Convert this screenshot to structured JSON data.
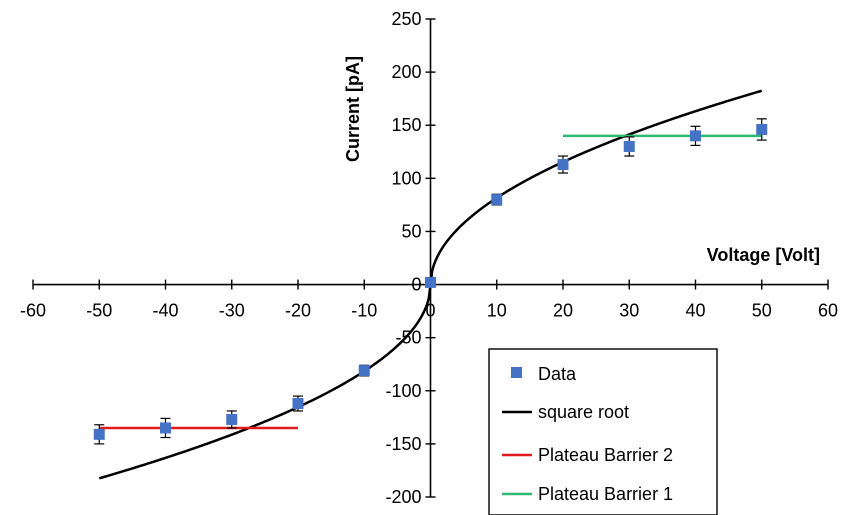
{
  "chart_data": {
    "type": "scatter",
    "xlabel": "Voltage [Volt]",
    "ylabel": "Current [pA]",
    "xlim": [
      -60,
      60
    ],
    "ylim": [
      -200,
      250
    ],
    "x_ticks": [
      -60,
      -50,
      -40,
      -30,
      -20,
      -10,
      0,
      10,
      20,
      30,
      40,
      50,
      60
    ],
    "y_ticks": [
      -200,
      -150,
      -100,
      -50,
      0,
      50,
      100,
      150,
      200,
      250
    ],
    "grid": false,
    "legend_position": "bottom-right",
    "series": [
      {
        "name": "Data",
        "kind": "scatter",
        "color": "#4472C4",
        "marker": "square",
        "x": [
          -50,
          -40,
          -30,
          -20,
          -10,
          0,
          10,
          20,
          30,
          40,
          50
        ],
        "y": [
          -141,
          -135,
          -127,
          -112,
          -81,
          2,
          80,
          113,
          130,
          140,
          146
        ],
        "error": [
          9,
          9,
          8,
          7,
          5,
          3,
          5,
          8,
          9,
          9,
          10
        ]
      },
      {
        "name": "square root",
        "kind": "line",
        "color": "#000000",
        "function": "sign(x)*25.8*sqrt(abs(x))",
        "x_range": [
          -50,
          50
        ]
      },
      {
        "name": "Plateau Barrier 2",
        "kind": "line",
        "color": "#E31A1C",
        "x": [
          -50,
          -20
        ],
        "y": [
          -135,
          -135
        ]
      },
      {
        "name": "Plateau Barrier 1",
        "kind": "line",
        "color": "#2EB872",
        "x": [
          20,
          50
        ],
        "y": [
          140,
          140
        ]
      }
    ]
  }
}
